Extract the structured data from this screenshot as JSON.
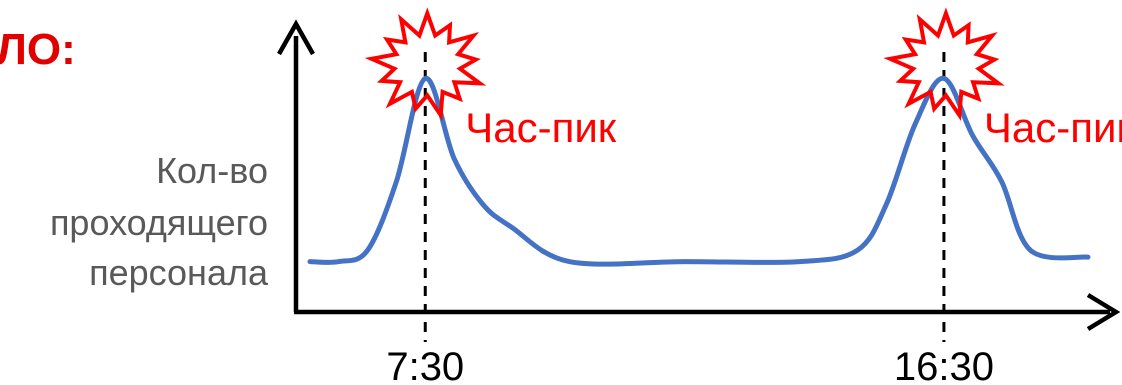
{
  "heading": "ЛО:",
  "chart_data": {
    "type": "line",
    "title": "",
    "xlabel": "",
    "ylabel_lines": [
      "Кол-во",
      "проходящего",
      "персонала"
    ],
    "grid": false,
    "legend": "none",
    "series": [
      {
        "color": "#4472c4",
        "x": [
          "5:30",
          "6:00",
          "6:30",
          "7:00",
          "7:30",
          "8:00",
          "8:30",
          "9:00",
          "10:00",
          "12:00",
          "14:00",
          "15:00",
          "15:30",
          "16:00",
          "16:30",
          "17:00",
          "17:30",
          "18:00",
          "19:00"
        ],
        "values": [
          1.5,
          1.5,
          2,
          5,
          9.5,
          6,
          4,
          3,
          1.5,
          1.5,
          1.5,
          2,
          4,
          7.5,
          9.5,
          7,
          5,
          2,
          1.7
        ]
      }
    ],
    "ylim": [
      0,
      11
    ],
    "xticks": [
      {
        "x": "7:30",
        "label": "7:30"
      },
      {
        "x": "16:30",
        "label": "16:30"
      }
    ],
    "annotations": [
      {
        "x": "7:30",
        "text": "Час-пик",
        "marker": "burst",
        "marker_color": "#ff0000"
      },
      {
        "x": "16:30",
        "text": "Час-пик",
        "marker": "burst",
        "marker_color": "#ff0000"
      }
    ]
  }
}
